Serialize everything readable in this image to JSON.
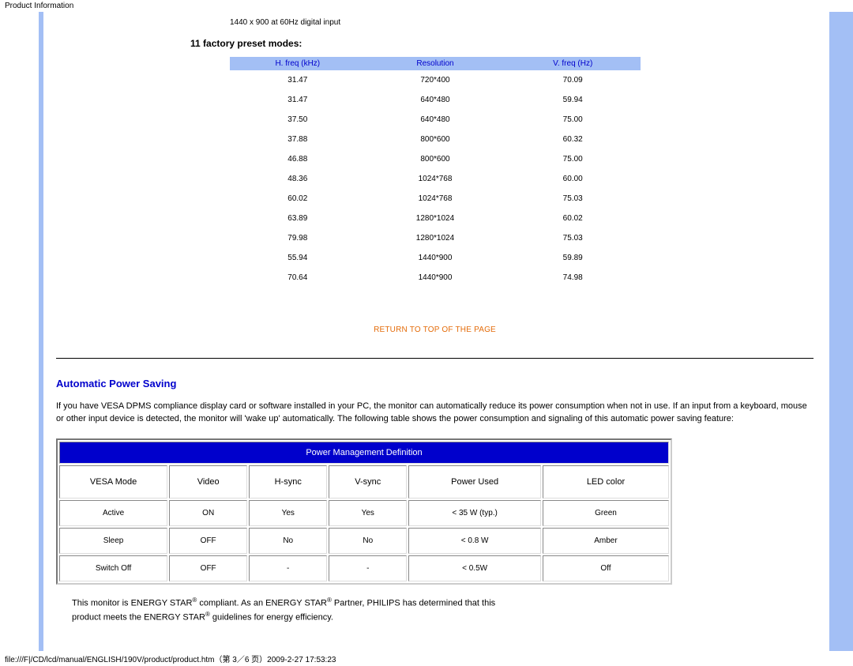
{
  "header": {
    "title": "Product Information"
  },
  "colors": {
    "accent_blue": "#a3bff5",
    "link_orange": "#e46c0a",
    "section_blue": "#0000cc",
    "table_header_bg": "#0000cc",
    "table_subheader_bg": "#a3bff5",
    "hr_color": "#000000"
  },
  "res_note": "1440 x 900 at 60Hz digital input",
  "preset": {
    "title": "11 factory preset modes:",
    "columns": [
      "H. freq (kHz)",
      "Resolution",
      "V. freq (Hz)"
    ],
    "col_widths": [
      "33%",
      "34%",
      "33%"
    ],
    "rows": [
      [
        "31.47",
        "720*400",
        "70.09"
      ],
      [
        "31.47",
        "640*480",
        "59.94"
      ],
      [
        "37.50",
        "640*480",
        "75.00"
      ],
      [
        "37.88",
        "800*600",
        "60.32"
      ],
      [
        "46.88",
        "800*600",
        "75.00"
      ],
      [
        "48.36",
        "1024*768",
        "60.00"
      ],
      [
        "60.02",
        "1024*768",
        "75.03"
      ],
      [
        "63.89",
        "1280*1024",
        "60.02"
      ],
      [
        "79.98",
        "1280*1024",
        "75.03"
      ],
      [
        "55.94",
        "1440*900",
        "59.89"
      ],
      [
        "70.64",
        "1440*900",
        "74.98"
      ]
    ]
  },
  "return_top": "RETURN TO TOP OF THE PAGE",
  "aps": {
    "title": "Automatic Power Saving",
    "paragraph": "If you have VESA DPMS compliance display card or software installed in your PC, the monitor can automatically reduce its power consumption when not in use. If an input from a keyboard, mouse or other input device is detected, the monitor will 'wake up' automatically. The following table shows the power consumption and signaling of this automatic power saving feature:"
  },
  "pm_table": {
    "title": "Power Management Definition",
    "subheaders": [
      "VESA Mode",
      "Video",
      "H-sync",
      "V-sync",
      "Power Used",
      "LED color"
    ],
    "rows": [
      [
        "Active",
        "ON",
        "Yes",
        "Yes",
        "< 35 W (typ.)",
        "Green"
      ],
      [
        "Sleep",
        "OFF",
        "No",
        "No",
        "< 0.8 W",
        "Amber"
      ],
      [
        "Switch Off",
        "OFF",
        "-",
        "-",
        "< 0.5W",
        "Off"
      ]
    ],
    "col_widths": [
      "18%",
      "13%",
      "13%",
      "13%",
      "22%",
      "21%"
    ]
  },
  "estar": {
    "line1_a": "This monitor is ENERGY STAR",
    "line1_b": " compliant. As an ENERGY STAR",
    "line1_c": " Partner, PHILIPS has determined that this",
    "line2_a": "product meets the ENERGY STAR",
    "line2_b": " guidelines for energy efficiency."
  },
  "footer": "file:///F|/CD/lcd/manual/ENGLISH/190V/product/product.htm（第 3／6 页）2009-2-27 17:53:23"
}
